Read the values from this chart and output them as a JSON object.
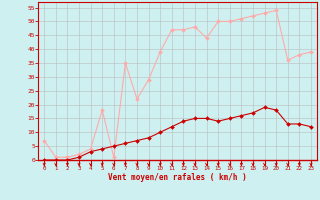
{
  "x": [
    0,
    1,
    2,
    3,
    4,
    5,
    6,
    7,
    8,
    9,
    10,
    11,
    12,
    13,
    14,
    15,
    16,
    17,
    18,
    19,
    20,
    21,
    22,
    23
  ],
  "wind_avg": [
    0,
    0,
    0,
    1,
    3,
    4,
    5,
    6,
    7,
    8,
    10,
    12,
    14,
    15,
    15,
    14,
    15,
    16,
    17,
    19,
    18,
    13,
    13,
    12
  ],
  "wind_gust": [
    7,
    1,
    1,
    2,
    4,
    18,
    1,
    35,
    22,
    29,
    39,
    47,
    47,
    48,
    44,
    50,
    50,
    51,
    52,
    53,
    54,
    36,
    38,
    39
  ],
  "avg_color": "#cc0000",
  "gust_color": "#ffaaaa",
  "bg_color": "#cff0f0",
  "grid_color": "#bbbbbb",
  "xlabel": "Vent moyen/en rafales ( km/h )",
  "xlabel_color": "#cc0000",
  "ylim": [
    0,
    57
  ],
  "yticks": [
    0,
    5,
    10,
    15,
    20,
    25,
    30,
    35,
    40,
    45,
    50,
    55
  ],
  "xticks": [
    0,
    1,
    2,
    3,
    4,
    5,
    6,
    7,
    8,
    9,
    10,
    11,
    12,
    13,
    14,
    15,
    16,
    17,
    18,
    19,
    20,
    21,
    22,
    23
  ],
  "marker_size": 2.0,
  "line_width": 0.8
}
